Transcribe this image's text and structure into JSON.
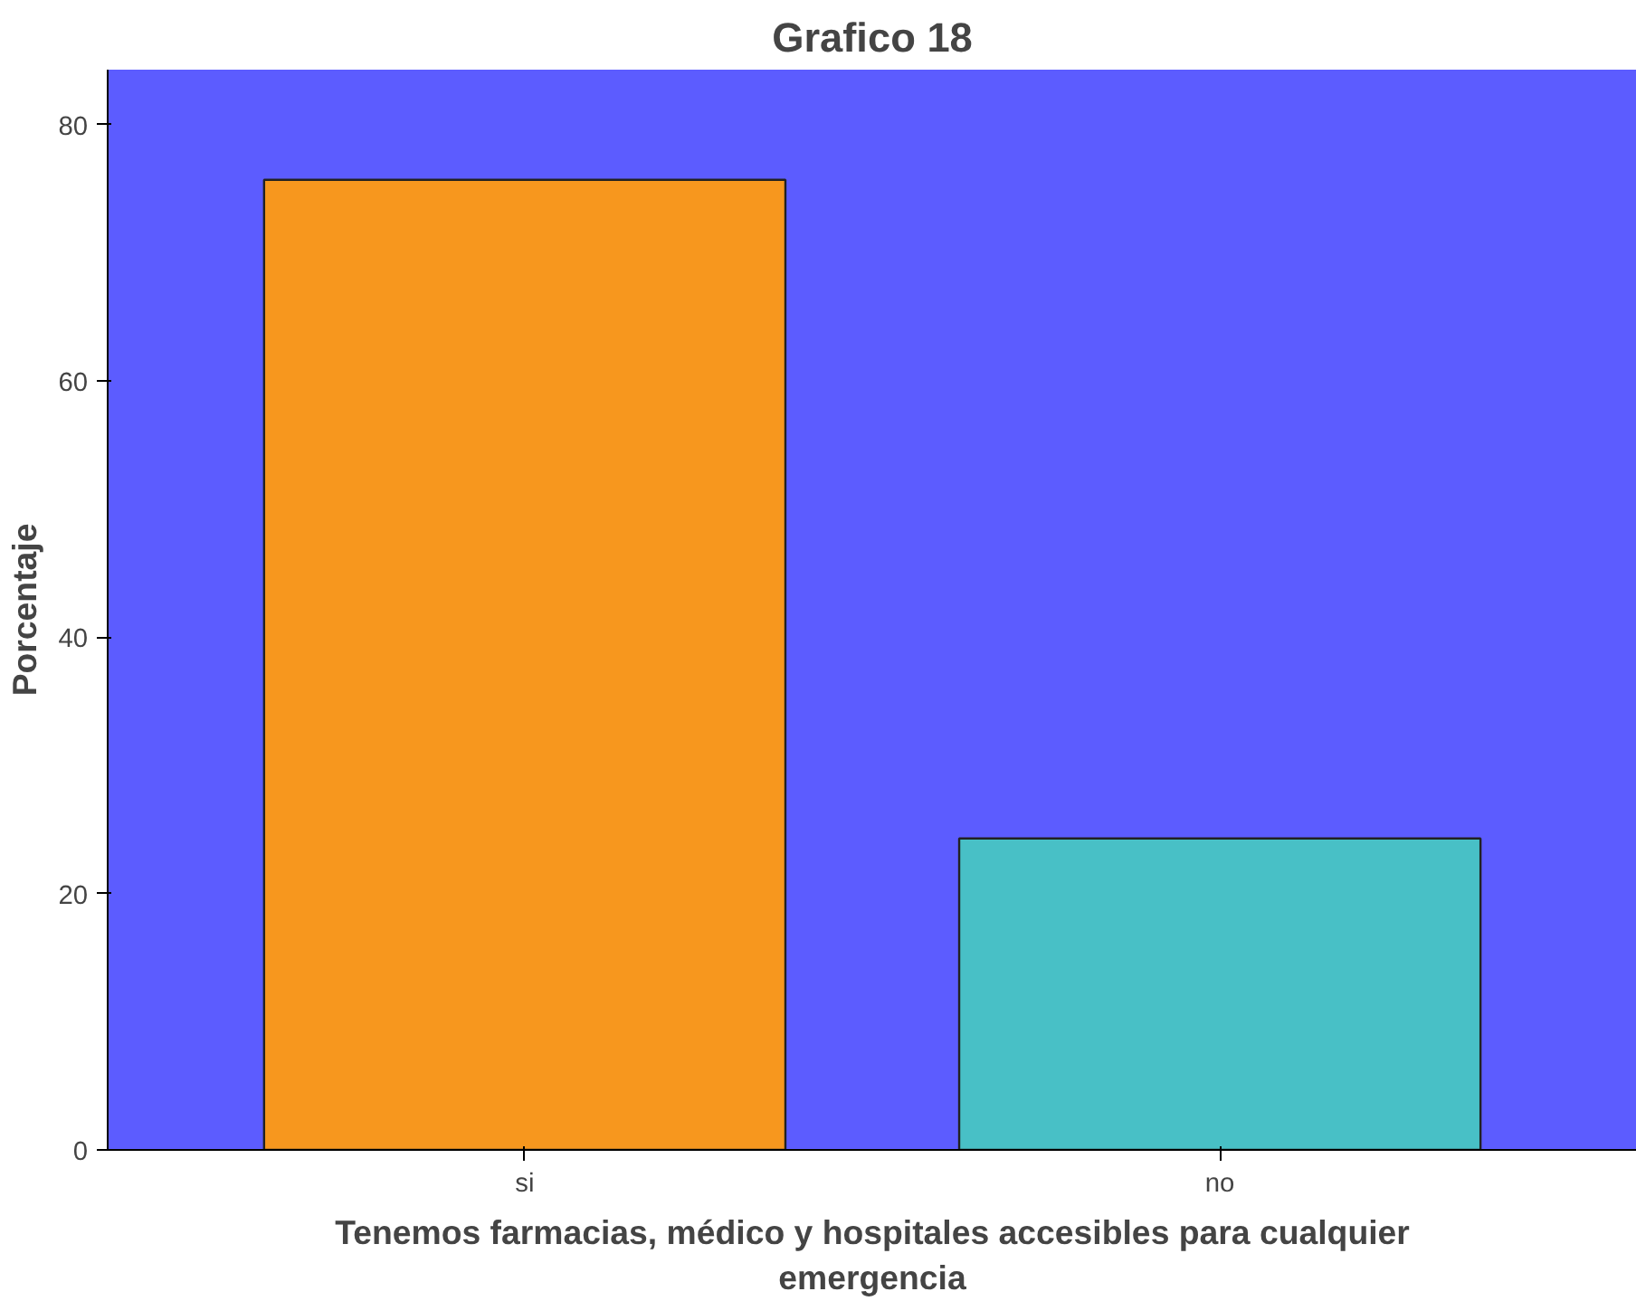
{
  "chart_data": {
    "type": "bar",
    "title": "Grafico 18",
    "xlabel": "Tenemos farmacias, médico y hospitales accesibles para cualquier emergencia",
    "ylabel": "Porcentaje",
    "categories": [
      "si",
      "no"
    ],
    "values": [
      75.7,
      24.3
    ],
    "colors": [
      "#f7971e",
      "#48c0c6"
    ],
    "ylim": [
      0,
      84.3
    ],
    "yticks": [
      0,
      20,
      40,
      60,
      80
    ],
    "grid": false
  }
}
